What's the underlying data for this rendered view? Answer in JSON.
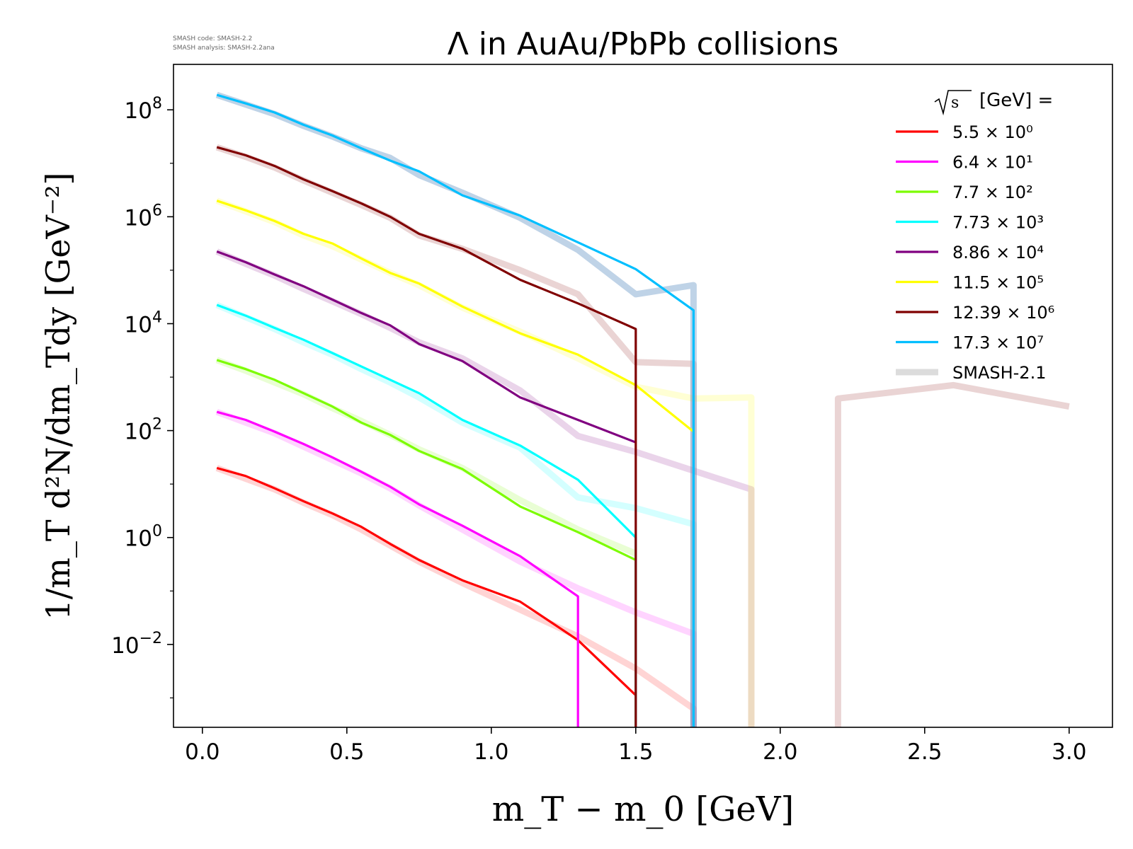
{
  "chart_data": {
    "type": "line",
    "title": "Λ in AuAu/PbPb collisions",
    "watermark": [
      "SMASH code:      SMASH-2.2",
      "SMASH analysis: SMASH-2.2ana"
    ],
    "xlabel": "m_T − m_0 [GeV]",
    "ylabel": "1/m_T d²N/dm_Tdy [GeV⁻²]",
    "xlim": [
      -0.1,
      3.15
    ],
    "ylim_log10": [
      -3.55,
      8.85
    ],
    "yscale": "log",
    "x_ticks": [
      {
        "value": 0.0,
        "label": "0.0"
      },
      {
        "value": 0.5,
        "label": "0.5"
      },
      {
        "value": 1.0,
        "label": "1.0"
      },
      {
        "value": 1.5,
        "label": "1.5"
      },
      {
        "value": 2.0,
        "label": "2.0"
      },
      {
        "value": 2.5,
        "label": "2.5"
      },
      {
        "value": 3.0,
        "label": "3.0"
      }
    ],
    "y_ticks": [
      {
        "exp": 8,
        "base": "10",
        "sup": "8"
      },
      {
        "exp": 6,
        "base": "10",
        "sup": "6"
      },
      {
        "exp": 4,
        "base": "10",
        "sup": "4"
      },
      {
        "exp": 2,
        "base": "10",
        "sup": "2"
      },
      {
        "exp": 0,
        "base": "10",
        "sup": "0"
      },
      {
        "exp": -2,
        "base": "10",
        "sup": "−2"
      }
    ],
    "grid": false,
    "legend": {
      "placement": "top-right",
      "title": "[GeV] =",
      "entries": [
        {
          "label": "5.5 × 10⁰",
          "color": "#ff0000"
        },
        {
          "label": "6.4 × 10¹",
          "color": "#ff00ff"
        },
        {
          "label": "7.7 × 10²",
          "color": "#7cfc00"
        },
        {
          "label": "7.73 × 10³",
          "color": "#00ffff"
        },
        {
          "label": "8.86 × 10⁴",
          "color": "#800080"
        },
        {
          "label": "11.5 × 10⁵",
          "color": "#ffff00"
        },
        {
          "label": "12.39 × 10⁶",
          "color": "#800000"
        },
        {
          "label": "17.3 × 10⁷",
          "color": "#00bfff"
        },
        {
          "label": "SMASH-2.1",
          "color": "#dcdcdc"
        }
      ]
    },
    "series": [
      {
        "sqrt_s": 5.5,
        "color": "#ff0000",
        "x": [
          0.05,
          0.15,
          0.25,
          0.35,
          0.45,
          0.55,
          0.65,
          0.75,
          0.9,
          1.1,
          1.3,
          1.5,
          1.5
        ],
        "log10y": [
          1.3,
          1.15,
          0.92,
          0.68,
          0.45,
          0.2,
          -0.12,
          -0.42,
          -0.8,
          -1.2,
          -1.92,
          -2.95,
          -3.55
        ],
        "ref_x": [
          0.05,
          0.15,
          0.25,
          0.35,
          0.45,
          0.55,
          0.65,
          0.75,
          0.9,
          1.1,
          1.3,
          1.5,
          1.7,
          1.7
        ],
        "ref_log10y": [
          1.3,
          1.1,
          0.9,
          0.65,
          0.42,
          0.15,
          -0.15,
          -0.45,
          -0.85,
          -1.35,
          -1.85,
          -2.45,
          -3.2,
          -3.55
        ]
      },
      {
        "sqrt_s": 64,
        "color": "#ff00ff",
        "x": [
          0.05,
          0.15,
          0.25,
          0.35,
          0.45,
          0.55,
          0.65,
          0.75,
          0.9,
          1.1,
          1.3,
          1.3
        ],
        "log10y": [
          2.35,
          2.2,
          1.98,
          1.75,
          1.5,
          1.23,
          0.95,
          0.62,
          0.22,
          -0.35,
          -1.1,
          -3.55
        ],
        "ref_x": [
          0.05,
          0.15,
          0.25,
          0.35,
          0.45,
          0.55,
          0.65,
          0.75,
          0.9,
          1.1,
          1.3,
          1.5,
          1.7,
          1.7
        ],
        "ref_log10y": [
          2.35,
          2.15,
          1.95,
          1.7,
          1.45,
          1.2,
          0.92,
          0.6,
          0.15,
          -0.45,
          -0.95,
          -1.4,
          -1.8,
          -3.55
        ]
      },
      {
        "sqrt_s": 770,
        "color": "#7cfc00",
        "x": [
          0.05,
          0.15,
          0.25,
          0.35,
          0.45,
          0.55,
          0.65,
          0.75,
          0.9,
          1.1,
          1.3,
          1.5,
          1.5
        ],
        "log10y": [
          3.32,
          3.15,
          2.95,
          2.7,
          2.45,
          2.15,
          1.92,
          1.62,
          1.28,
          0.58,
          0.1,
          -0.42,
          -3.55
        ],
        "ref_x": [
          0.05,
          0.15,
          0.25,
          0.35,
          0.45,
          0.55,
          0.65,
          0.75,
          0.9,
          1.1,
          1.3,
          1.5
        ],
        "ref_log10y": [
          3.32,
          3.12,
          2.9,
          2.68,
          2.42,
          2.18,
          1.92,
          1.65,
          1.3,
          0.7,
          0.15,
          -0.3
        ]
      },
      {
        "sqrt_s": 7730,
        "color": "#00ffff",
        "x": [
          0.05,
          0.15,
          0.25,
          0.35,
          0.45,
          0.55,
          0.65,
          0.75,
          0.9,
          1.1,
          1.3,
          1.5,
          1.5
        ],
        "log10y": [
          4.35,
          4.15,
          3.92,
          3.7,
          3.45,
          3.2,
          2.95,
          2.7,
          2.2,
          1.72,
          1.08,
          0.0,
          -3.55
        ],
        "ref_x": [
          0.05,
          0.15,
          0.25,
          0.35,
          0.45,
          0.55,
          0.65,
          0.75,
          0.9,
          1.1,
          1.3,
          1.5,
          1.7,
          1.7
        ],
        "ref_log10y": [
          4.35,
          4.12,
          3.9,
          3.65,
          3.42,
          3.15,
          2.9,
          2.62,
          2.15,
          1.68,
          0.75,
          0.55,
          0.25,
          -3.55
        ]
      },
      {
        "sqrt_s": 88600,
        "color": "#800080",
        "x": [
          0.05,
          0.15,
          0.25,
          0.35,
          0.45,
          0.55,
          0.65,
          0.75,
          0.9,
          1.1,
          1.3,
          1.5
        ],
        "log10y": [
          5.35,
          5.15,
          4.92,
          4.7,
          4.45,
          4.2,
          3.97,
          3.62,
          3.3,
          2.62,
          2.2,
          1.78
        ],
        "ref_x": [
          0.05,
          0.15,
          0.25,
          0.35,
          0.45,
          0.55,
          0.65,
          0.75,
          0.9,
          1.1,
          1.3,
          1.5,
          1.7,
          1.9,
          1.9
        ],
        "ref_log10y": [
          5.35,
          5.12,
          4.9,
          4.65,
          4.42,
          4.18,
          3.92,
          3.65,
          3.35,
          2.75,
          1.9,
          1.6,
          1.25,
          0.9,
          -3.55
        ]
      },
      {
        "sqrt_s": 1150000,
        "color": "#ffff00",
        "x": [
          0.05,
          0.15,
          0.25,
          0.35,
          0.45,
          0.55,
          0.65,
          0.75,
          0.9,
          1.1,
          1.3,
          1.5,
          1.7
        ],
        "log10y": [
          6.3,
          6.12,
          5.92,
          5.68,
          5.5,
          5.22,
          4.95,
          4.75,
          4.32,
          3.82,
          3.42,
          2.85,
          1.98
        ],
        "ref_x": [
          0.05,
          0.15,
          0.25,
          0.35,
          0.45,
          0.55,
          0.65,
          0.75,
          0.9,
          1.1,
          1.3,
          1.5,
          1.7,
          1.9,
          1.9
        ],
        "ref_log10y": [
          6.3,
          6.1,
          5.9,
          5.65,
          5.45,
          5.2,
          4.95,
          4.72,
          4.3,
          3.85,
          3.35,
          2.82,
          2.6,
          2.62,
          -3.55
        ]
      },
      {
        "sqrt_s": 12390000,
        "color": "#800000",
        "x": [
          0.05,
          0.15,
          0.25,
          0.35,
          0.45,
          0.55,
          0.65,
          0.75,
          0.9,
          1.1,
          1.3,
          1.5,
          1.5
        ],
        "log10y": [
          7.3,
          7.15,
          6.95,
          6.7,
          6.48,
          6.25,
          6.0,
          5.68,
          5.4,
          4.82,
          4.38,
          3.9,
          -3.55
        ],
        "ref_x": [
          0.05,
          0.15,
          0.25,
          0.35,
          0.45,
          0.55,
          0.65,
          0.75,
          0.9,
          1.1,
          1.3,
          1.5,
          1.7,
          1.7
        ],
        "ref_log10y": [
          7.3,
          7.12,
          6.92,
          6.68,
          6.45,
          6.22,
          5.98,
          5.65,
          5.4,
          5.0,
          4.55,
          3.28,
          3.25,
          -3.55
        ]
      },
      {
        "sqrt_s": 173000000,
        "color": "#00bfff",
        "x": [
          0.05,
          0.15,
          0.25,
          0.35,
          0.45,
          0.55,
          0.65,
          0.75,
          0.9,
          1.1,
          1.3,
          1.5,
          1.7,
          1.7
        ],
        "log10y": [
          8.28,
          8.12,
          7.95,
          7.72,
          7.52,
          7.28,
          7.05,
          6.85,
          6.4,
          6.02,
          5.52,
          5.02,
          4.25,
          -3.55
        ],
        "ref_x": [
          0.05,
          0.15,
          0.25,
          0.35,
          0.45,
          0.55,
          0.65,
          0.75,
          0.9,
          1.1,
          1.3,
          1.5,
          1.7,
          1.7
        ],
        "ref_log10y": [
          8.28,
          8.1,
          7.92,
          7.7,
          7.5,
          7.28,
          7.1,
          6.78,
          6.45,
          5.98,
          5.38,
          4.55,
          4.72,
          -3.55
        ]
      }
    ],
    "extra_ref_series": [
      {
        "color": "#800000",
        "x": [
          2.2,
          2.2,
          2.6,
          3.0
        ],
        "log10y": [
          -3.55,
          2.6,
          2.85,
          2.45
        ]
      }
    ]
  }
}
